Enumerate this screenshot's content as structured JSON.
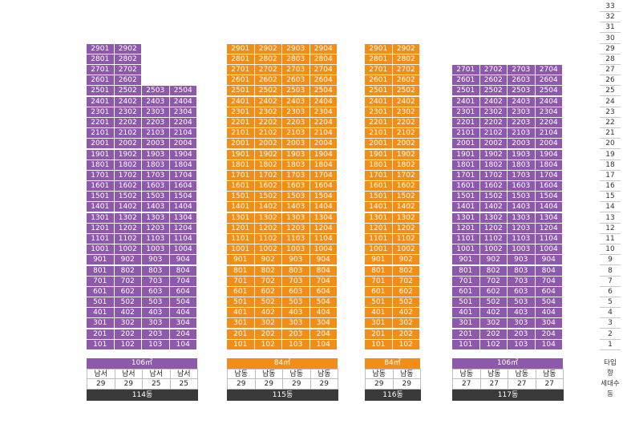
{
  "colors": {
    "purple": "#8e58ac",
    "orange": "#f28e16",
    "dark": "#3a3a3a"
  },
  "floor_scale": [
    "33",
    "32",
    "31",
    "30",
    "29",
    "28",
    "27",
    "26",
    "25",
    "24",
    "23",
    "22",
    "21",
    "20",
    "19",
    "18",
    "17",
    "16",
    "15",
    "14",
    "13",
    "12",
    "11",
    "10",
    "9",
    "8",
    "7",
    "6",
    "5",
    "4",
    "3",
    "2",
    "1"
  ],
  "legend": [
    "타입",
    "향",
    "세대수",
    "동"
  ],
  "buildings": [
    {
      "name": "114동",
      "color": "purple",
      "type": "106㎡",
      "lines": [
        {
          "direction": "남서",
          "units": 29
        },
        {
          "direction": "남서",
          "units": 29
        },
        {
          "direction": "남서",
          "units": 25
        },
        {
          "direction": "남서",
          "units": 25
        }
      ]
    },
    {
      "name": "115동",
      "color": "orange",
      "type": "84㎡",
      "lines": [
        {
          "direction": "남동",
          "units": 29
        },
        {
          "direction": "남동",
          "units": 29
        },
        {
          "direction": "남동",
          "units": 29
        },
        {
          "direction": "남동",
          "units": 29
        }
      ]
    },
    {
      "name": "116동",
      "color": "orange",
      "type": "84㎡",
      "lines": [
        {
          "direction": "남동",
          "units": 29
        },
        {
          "direction": "남동",
          "units": 29
        }
      ]
    },
    {
      "name": "117동",
      "color": "purple",
      "type": "106㎡",
      "lines": [
        {
          "direction": "남동",
          "units": 27
        },
        {
          "direction": "남동",
          "units": 27
        },
        {
          "direction": "남동",
          "units": 27
        },
        {
          "direction": "남동",
          "units": 27
        }
      ]
    }
  ]
}
